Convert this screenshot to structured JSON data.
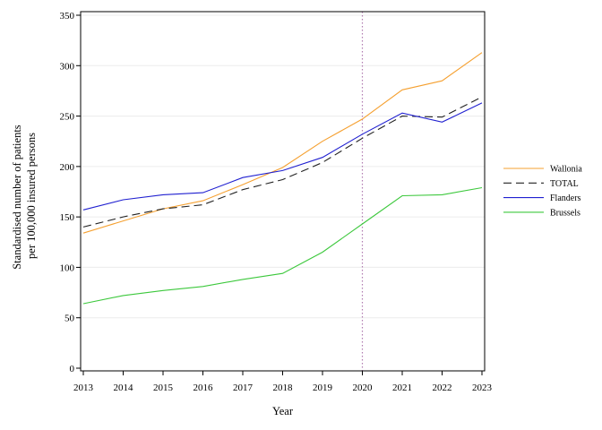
{
  "chart_data": {
    "type": "line",
    "title": "",
    "xlabel": "Year",
    "ylabel_lines": [
      "Standardised number of patients",
      "per 100,000 insured persons"
    ],
    "x": [
      2013,
      2014,
      2015,
      2016,
      2017,
      2018,
      2019,
      2020,
      2021,
      2022,
      2023
    ],
    "x_tick_labels": [
      "2013",
      "2014",
      "2015",
      "2016",
      "2017",
      "2018",
      "2019",
      "2020",
      "2021",
      "2022",
      "2023"
    ],
    "y_ticks": [
      0,
      50,
      100,
      150,
      200,
      250,
      300,
      350
    ],
    "y_tick_labels": [
      "0",
      "50",
      "100",
      "150",
      "200",
      "250",
      "300",
      "350"
    ],
    "xlim": [
      2013,
      2023
    ],
    "ylim": [
      0,
      350
    ],
    "grid": "horizontal",
    "reference_line": {
      "x": 2020,
      "style": "dotted",
      "color": "#b07ab0"
    },
    "legend_position": "right",
    "series": [
      {
        "name": "Wallonia",
        "color": "#f5a030",
        "dash": "solid",
        "values": [
          134,
          146,
          158,
          166,
          182,
          199,
          225,
          247,
          276,
          285,
          313
        ]
      },
      {
        "name": "TOTAL",
        "color": "#222222",
        "dash": "dashed",
        "values": [
          140,
          150,
          158,
          162,
          177,
          187,
          204,
          228,
          250,
          249,
          269
        ]
      },
      {
        "name": "Flanders",
        "color": "#2020d0",
        "dash": "solid",
        "values": [
          157,
          167,
          172,
          174,
          189,
          196,
          209,
          232,
          253,
          244,
          263
        ]
      },
      {
        "name": "Brussels",
        "color": "#3cc83c",
        "dash": "solid",
        "values": [
          64,
          72,
          77,
          81,
          88,
          94,
          115,
          143,
          171,
          172,
          179
        ]
      }
    ]
  }
}
